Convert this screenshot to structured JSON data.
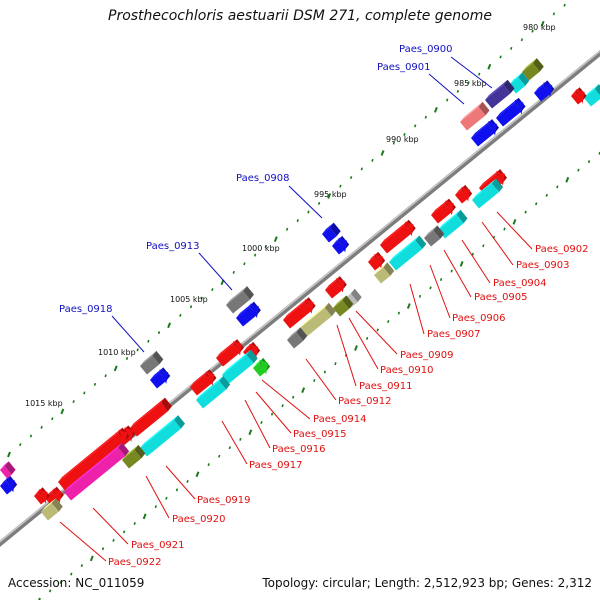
{
  "title": "Prosthecochloris aestuarii DSM 271, complete genome",
  "footer": {
    "accession": "Accession: NC_011059",
    "topology": "Topology: circular; Length: 2,512,923 bp; Genes: 2,312"
  },
  "colors": {
    "backbone": "#8a8a8a",
    "tick": "#1a7a1a",
    "label_top": "#1010c0",
    "label_bottom": "#e01010",
    "gene_red": "#ee1111",
    "gene_blue": "#1010ee",
    "gene_cyan": "#11dddd",
    "gene_gray": "#777777",
    "gene_olive": "#778822",
    "gene_khaki": "#bbbb77",
    "gene_magenta": "#ee22aa",
    "gene_salmon": "#ee7777",
    "gene_navy": "#443399",
    "gene_green": "#22cc22",
    "gene_lightgray": "#bbbbbb"
  },
  "kbp_labels": [
    "980 kbp",
    "985 kbp",
    "990 kbp",
    "995 kbp",
    "1000 kbp",
    "1005 kbp",
    "1010 kbp",
    "1015 kbp"
  ],
  "genes_top": [
    "Paes_0900",
    "Paes_0901",
    "Paes_0908",
    "Paes_0913",
    "Paes_0918"
  ],
  "genes_bottom": [
    "Paes_0902",
    "Paes_0903",
    "Paes_0904",
    "Paes_0905",
    "Paes_0906",
    "Paes_0907",
    "Paes_0909",
    "Paes_0910",
    "Paes_0911",
    "Paes_0912",
    "Paes_0914",
    "Paes_0915",
    "Paes_0916",
    "Paes_0917",
    "Paes_0919",
    "Paes_0920",
    "Paes_0921",
    "Paes_0922"
  ]
}
